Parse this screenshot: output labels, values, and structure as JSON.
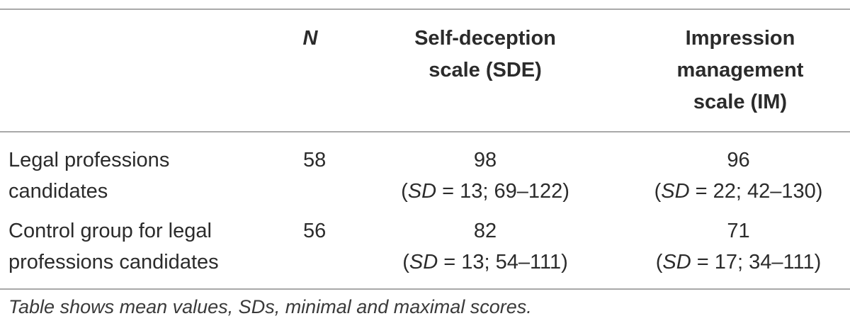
{
  "table": {
    "headers": {
      "group": "",
      "n": "N",
      "sde_line1": "Self-deception",
      "sde_line2": "scale (SDE)",
      "im_line1": "Impression",
      "im_line2": "management",
      "im_line3": "scale (IM)"
    },
    "rows": [
      {
        "group_line1": "Legal professions",
        "group_line2": "candidates",
        "n": "58",
        "sde_mean": "98",
        "sde_sd_label": "SD",
        "sde_sd_rest": " = 13; 69–122)",
        "im_mean": "96",
        "im_sd_label": "SD",
        "im_sd_rest": " = 22; 42–130)"
      },
      {
        "group_line1": "Control group for legal",
        "group_line2": "professions candidates",
        "n": "56",
        "sde_mean": "82",
        "sde_sd_label": "SD",
        "sde_sd_rest": " = 13; 54–111)",
        "im_mean": "71",
        "im_sd_label": "SD",
        "im_sd_rest": " = 17; 34–111)"
      }
    ],
    "open_paren": "(",
    "note": "Table shows mean values, SDs, minimal and maximal scores."
  }
}
